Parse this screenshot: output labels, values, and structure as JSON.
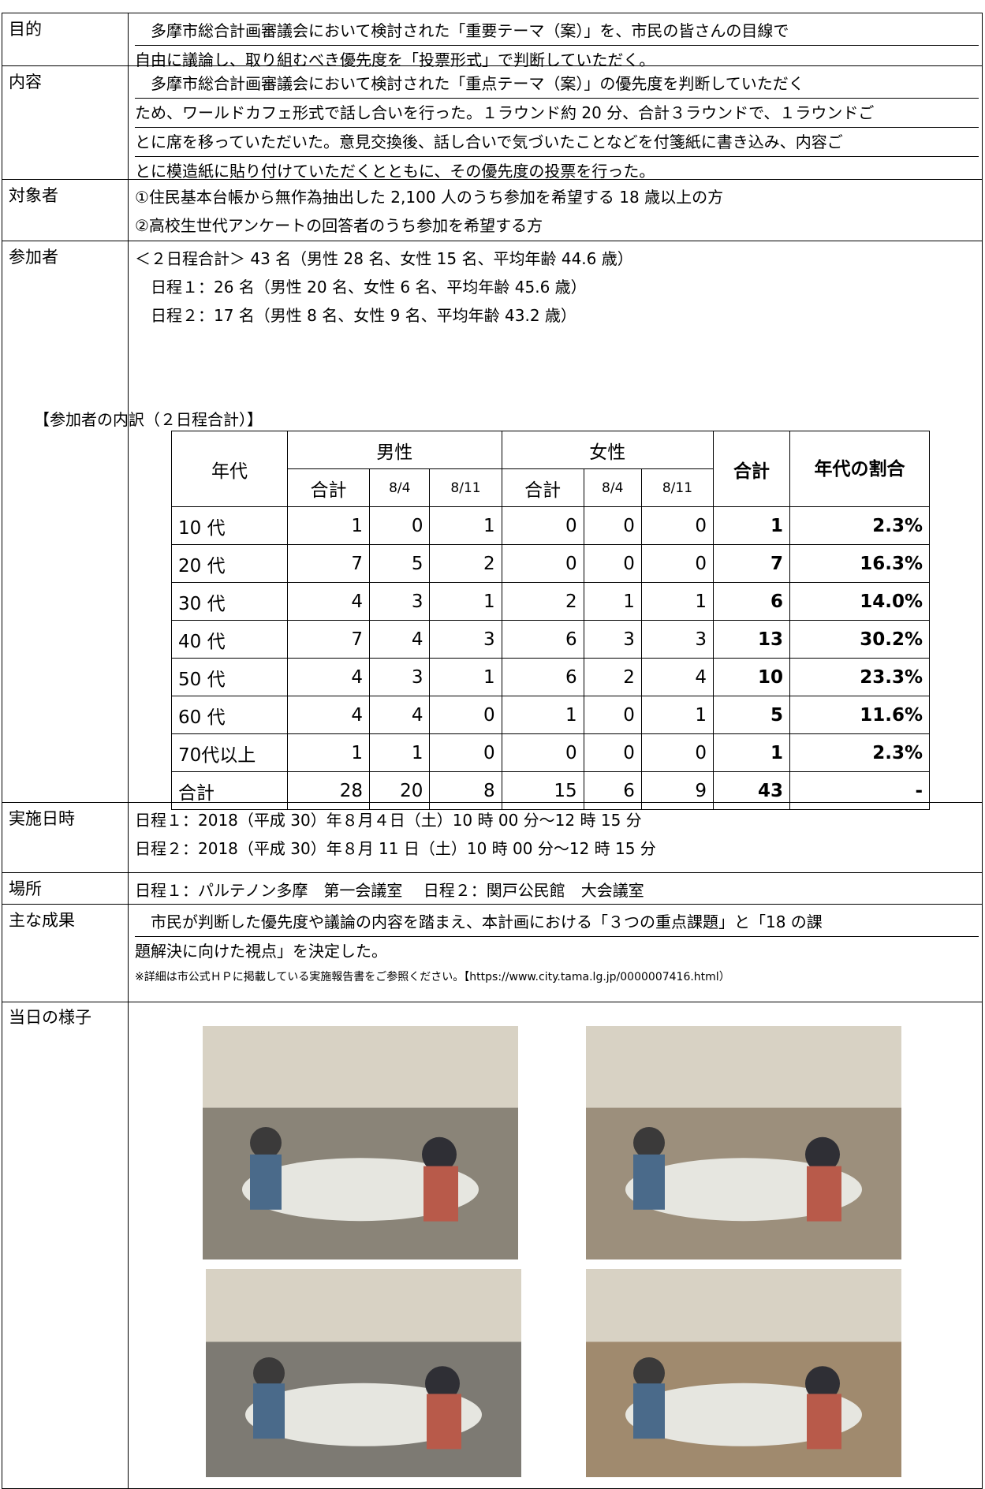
{
  "purpose": {
    "label": "目的",
    "lines": [
      "　多摩市総合計画審議会において検討された「重要テーマ（案）」を、市民の皆さんの目線で",
      "自由に議論し、取り組むべき優先度を「投票形式」で判断していただく。"
    ]
  },
  "content": {
    "label": "内容",
    "lines": [
      "　多摩市総合計画審議会において検討された「重点テーマ（案）」の優先度を判断していただく",
      "ため、ワールドカフェ形式で話し合いを行った。１ラウンド約 20 分、合計３ラウンドで、１ラウンドご",
      "とに席を移っていただいた。意見交換後、話し合いで気づいたことなどを付箋紙に書き込み、内容ご",
      "とに模造紙に貼り付けていただくとともに、その優先度の投票を行った。"
    ]
  },
  "target": {
    "label": "対象者",
    "lines": [
      "①住民基本台帳から無作為抽出した 2,100 人のうち参加を希望する 18 歳以上の方",
      "②高校生世代アンケートの回答者のうち参加を希望する方"
    ]
  },
  "participants": {
    "label": "参加者",
    "lines": [
      "＜２日程合計＞ 43 名（男性 28 名、女性 15 名、平均年齢 44.6 歳）",
      "　日程１：26 名（男性 20 名、女性 6 名、平均年齢 45.6 歳）",
      "　日程２：17 名（男性 8 名、女性 9 名、平均年齢 43.2 歳）"
    ],
    "table": {
      "caption": "【参加者の内訳（２日程合計）】",
      "header": {
        "age": "年代",
        "male": "男性",
        "female": "女性",
        "total": "合計",
        "ratio": "年代の割合",
        "sub": [
          "合計",
          "8/4",
          "8/11",
          "合計",
          "8/4",
          "8/11"
        ]
      },
      "rows": [
        [
          "10 代",
          1,
          0,
          1,
          0,
          0,
          0,
          1,
          "2.3%"
        ],
        [
          "20 代",
          7,
          5,
          2,
          0,
          0,
          0,
          7,
          "16.3%"
        ],
        [
          "30 代",
          4,
          3,
          1,
          2,
          1,
          1,
          6,
          "14.0%"
        ],
        [
          "40 代",
          7,
          4,
          3,
          6,
          3,
          3,
          13,
          "30.2%"
        ],
        [
          "50 代",
          4,
          3,
          1,
          6,
          2,
          4,
          10,
          "23.3%"
        ],
        [
          "60 代",
          4,
          4,
          0,
          1,
          0,
          1,
          5,
          "11.6%"
        ],
        [
          "70代以上",
          1,
          1,
          0,
          0,
          0,
          0,
          1,
          "2.3%"
        ],
        [
          "合計",
          28,
          20,
          8,
          15,
          6,
          9,
          43,
          "-"
        ]
      ]
    }
  },
  "datetime": {
    "label": "実施日時",
    "lines": [
      "日程１：2018（平成 30）年８月４日（土）10 時 00 分～12 時 15 分",
      "日程２：2018（平成 30）年８月 11 日（土）10 時 00 分～12 時 15 分"
    ]
  },
  "place": {
    "label": "場所",
    "lines": [
      "日程１：パルテノン多摩　第一会議室　 日程２：関戸公民館　大会議室"
    ]
  },
  "result": {
    "label": "主な成果",
    "lines": [
      "　市民が判断した優先度や議論の内容を踏まえ、本計画における「３つの重点課題」と「18 の課",
      "題解決に向けた視点」を決定した。"
    ],
    "note": "※詳細は市公式ＨＰに掲載している実施報告書をご参照ください。【https://www.city.tama.lg.jp/0000007416.html）"
  },
  "scene": {
    "label": "当日の様子"
  }
}
